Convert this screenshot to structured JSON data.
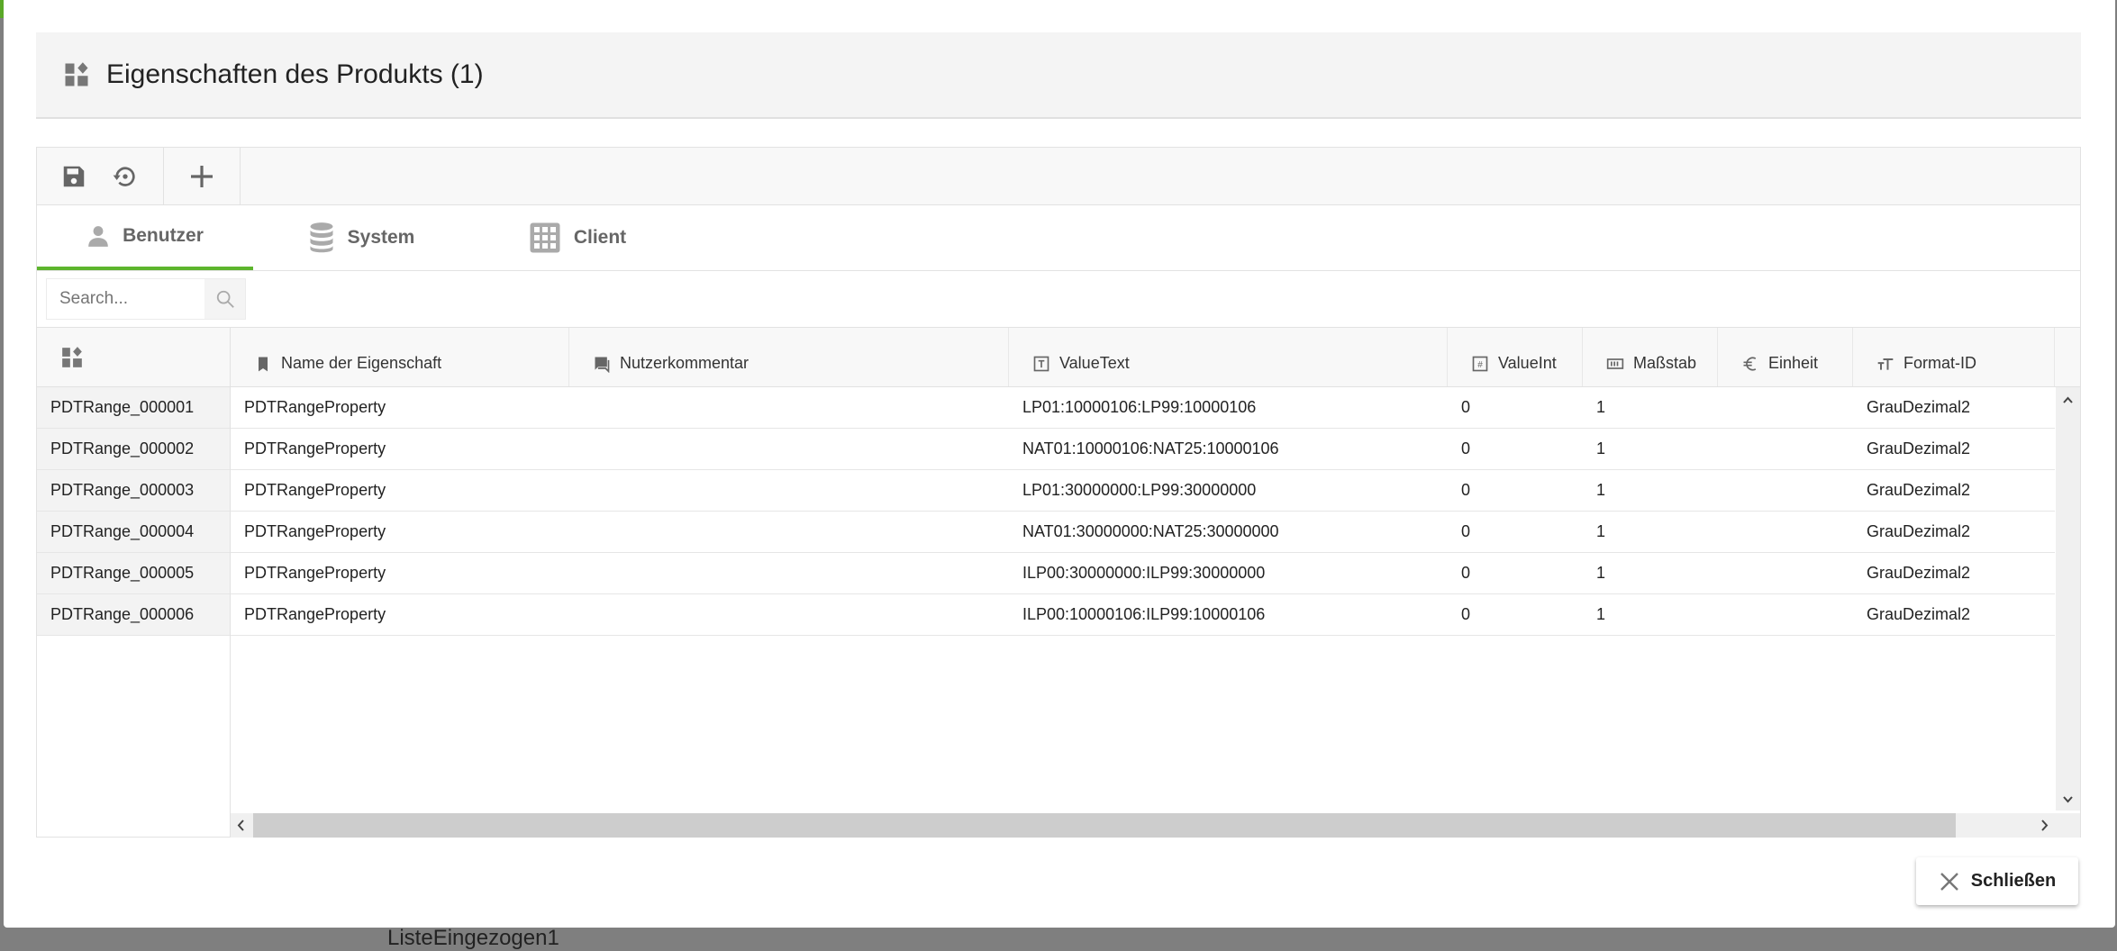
{
  "background": {
    "text": "ListeEingezogen1"
  },
  "dialog": {
    "title": "Eigenschaften des Produkts (1)",
    "toolbar": {
      "save": "save-icon",
      "reset": "restore-icon",
      "add": "plus-icon"
    },
    "tabs": [
      {
        "label": "Benutzer",
        "icon": "person-icon",
        "active": true
      },
      {
        "label": "System",
        "icon": "database-icon"
      },
      {
        "label": "Client",
        "icon": "grid-icon"
      }
    ],
    "search": {
      "placeholder": "Search..."
    },
    "columns": [
      "Name der Eigenschaft",
      "Nutzerkommentar",
      "ValueText",
      "ValueInt",
      "Maßstab",
      "Einheit",
      "Format-ID"
    ],
    "rows": [
      {
        "id": "PDTRange_000001",
        "name": "PDTRangeProperty",
        "comment": "",
        "valueText": "LP01:10000106:LP99:10000106",
        "valueInt": "0",
        "scale": "1",
        "unit": "",
        "format": "GrauDezimal2"
      },
      {
        "id": "PDTRange_000002",
        "name": "PDTRangeProperty",
        "comment": "",
        "valueText": "NAT01:10000106:NAT25:10000106",
        "valueInt": "0",
        "scale": "1",
        "unit": "",
        "format": "GrauDezimal2"
      },
      {
        "id": "PDTRange_000003",
        "name": "PDTRangeProperty",
        "comment": "",
        "valueText": "LP01:30000000:LP99:30000000",
        "valueInt": "0",
        "scale": "1",
        "unit": "",
        "format": "GrauDezimal2"
      },
      {
        "id": "PDTRange_000004",
        "name": "PDTRangeProperty",
        "comment": "",
        "valueText": "NAT01:30000000:NAT25:30000000",
        "valueInt": "0",
        "scale": "1",
        "unit": "",
        "format": "GrauDezimal2"
      },
      {
        "id": "PDTRange_000005",
        "name": "PDTRangeProperty",
        "comment": "",
        "valueText": "ILP00:30000000:ILP99:30000000",
        "valueInt": "0",
        "scale": "1",
        "unit": "",
        "format": "GrauDezimal2"
      },
      {
        "id": "PDTRange_000006",
        "name": "PDTRangeProperty",
        "comment": "",
        "valueText": "ILP00:10000106:ILP99:10000106",
        "valueInt": "0",
        "scale": "1",
        "unit": "",
        "format": "GrauDezimal2"
      }
    ],
    "close_label": "Schließen",
    "accent": "#5db52d"
  }
}
